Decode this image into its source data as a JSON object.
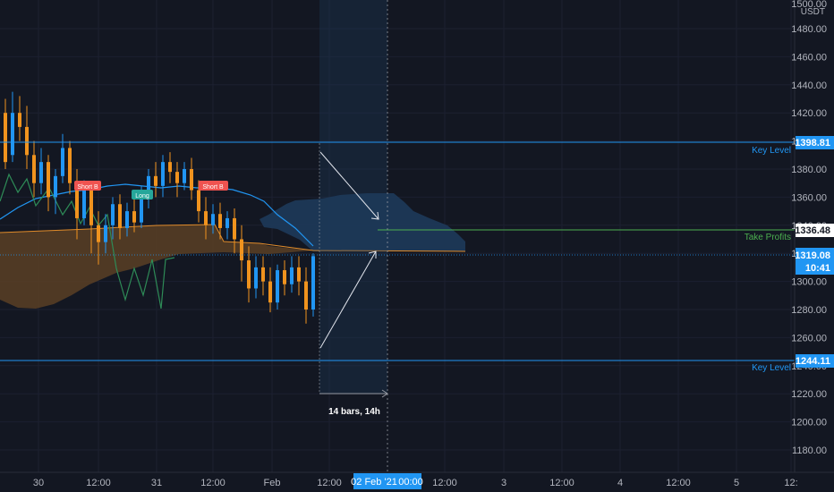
{
  "header": {
    "price_scale_unit": "USDT",
    "price_scale_top": "1500.00"
  },
  "y_axis": {
    "ticks": [
      "1480.00",
      "1460.00",
      "1440.00",
      "1420.00",
      "1400.00",
      "1380.00",
      "1360.00",
      "1340.00",
      "1320.00",
      "1300.00",
      "1280.00",
      "1260.00",
      "1240.00",
      "1220.00",
      "1200.00",
      "1180.00"
    ]
  },
  "x_axis": {
    "ticks": [
      "30",
      "12:00",
      "31",
      "12:00",
      "Feb",
      "12:00",
      "00:00",
      "12:00",
      "3",
      "12:00",
      "4",
      "12:00",
      "5",
      "12:"
    ],
    "crosshair_label": "02 Feb '21"
  },
  "levels": {
    "key_level_upper": {
      "label": "Key Level",
      "price": "1398.81",
      "color": "#2196f3"
    },
    "key_level_lower": {
      "label": "Key Level",
      "price": "1244.11",
      "color": "#2196f3"
    },
    "take_profits": {
      "label": "Take Profits",
      "price": "1336.48",
      "color": "#4caf50"
    },
    "current_price": {
      "price": "1319.08",
      "countdown": "10:41",
      "color": "#2196f3"
    }
  },
  "measure": {
    "label": "14 bars, 14h"
  },
  "signals": [
    {
      "text": "Short B",
      "type": "short"
    },
    {
      "text": "Long",
      "type": "long"
    },
    {
      "text": "Short B",
      "type": "short"
    }
  ],
  "colors": {
    "background": "#131722",
    "bull": "#2196f3",
    "bear": "#f0931e",
    "kumo": "#5b4024",
    "kumo_future": "#1e3a5a",
    "lagging": "#2e8b57"
  }
}
